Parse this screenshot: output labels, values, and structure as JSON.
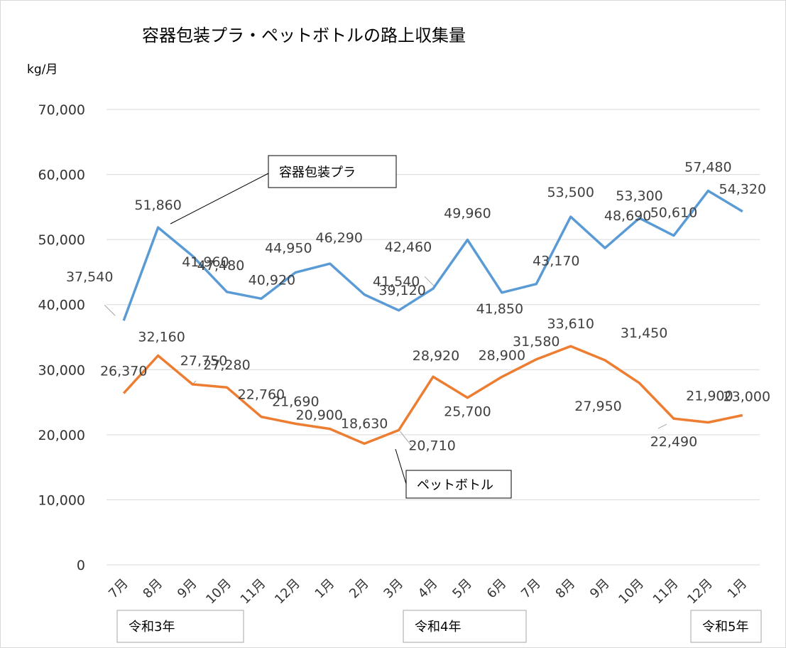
{
  "chart_data": {
    "type": "line",
    "title": "容器包装プラ・ペットボトルの路上収集量",
    "ylabel": "kg/月",
    "ylim": [
      0,
      70000
    ],
    "yticks": [
      "0",
      "10,000",
      "20,000",
      "30,000",
      "40,000",
      "50,000",
      "60,000",
      "70,000"
    ],
    "yticks_values": [
      0,
      10000,
      20000,
      30000,
      40000,
      50000,
      60000,
      70000
    ],
    "grid": true,
    "categories": [
      "7月",
      "8月",
      "9月",
      "10月",
      "11月",
      "12月",
      "1月",
      "2月",
      "3月",
      "4月",
      "5月",
      "6月",
      "7月",
      "8月",
      "9月",
      "10月",
      "11月",
      "12月",
      "1月"
    ],
    "era_labels": [
      "令和3年",
      "令和4年",
      "令和5年"
    ],
    "series": [
      {
        "name": "容器包装プラ",
        "color": "#5B9BD5",
        "values": [
          37540,
          51860,
          47480,
          41960,
          40920,
          44950,
          46290,
          41540,
          39120,
          42460,
          49960,
          41850,
          43170,
          53500,
          48690,
          53300,
          50610,
          57480,
          54320
        ],
        "labels": [
          "37,540",
          "51,860",
          "47,480",
          "41,960",
          "40,920",
          "44,950",
          "46,290",
          "41,540",
          "39,120",
          "42,460",
          "49,960",
          "41,850",
          "43,170",
          "53,500",
          "48,690",
          "53,300",
          "50,610",
          "57,480",
          "54,320"
        ]
      },
      {
        "name": "ペットボトル",
        "color": "#ED7D31",
        "values": [
          26370,
          32160,
          27750,
          27280,
          22760,
          21690,
          20900,
          18630,
          20710,
          28920,
          25700,
          28900,
          31580,
          33610,
          31450,
          27950,
          22490,
          21900,
          23000
        ],
        "labels": [
          "26,370",
          "32,160",
          "27,750",
          "27,280",
          "22,760",
          "21,690",
          "20,900",
          "18,630",
          "20,710",
          "28,920",
          "25,700",
          "28,900",
          "31,580",
          "33,610",
          "31,450",
          "27,950",
          "22,490",
          "21,900",
          "23,000"
        ]
      }
    ]
  }
}
